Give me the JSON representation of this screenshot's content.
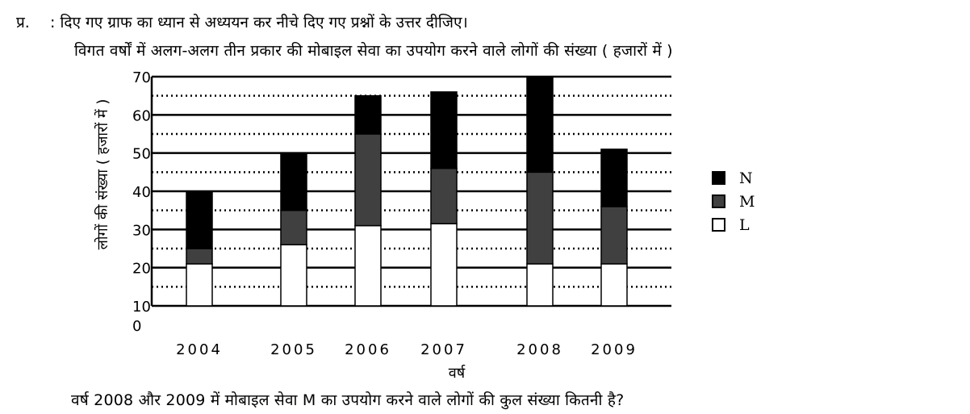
{
  "question": {
    "number": "प्र.",
    "instruction": ": दिए गए ग्राफ का ध्यान से अध्ययन कर नीचे दिए गए प्रश्नों के उत्तर दीजिए।",
    "subtitle": "विगत वर्षों में अलग-अलग तीन प्रकार की मोबाइल सेवा का उपयोग करने वाले लोगों की संख्या ( हजारों में )",
    "prompt": "वर्ष 2008 और 2009 में मोबाइल सेवा M का उपयोग करने वाले लोगों की कुल संख्या कितनी है?"
  },
  "chart_data": {
    "type": "bar",
    "stacked": true,
    "title": "विगत वर्षों में अलग-अलग तीन प्रकार की मोबाइल सेवा का उपयोग करने वाले लोगों की संख्या ( हजारों में )",
    "xlabel": "वर्ष",
    "ylabel": "लोगों की संख्या ( हजारों में )",
    "categories": [
      "2004",
      "2005",
      "2006",
      "2007",
      "2008",
      "2009"
    ],
    "series": [
      {
        "name": "L",
        "color": "#ffffff",
        "values": [
          11,
          16,
          21,
          21.5,
          11,
          11
        ]
      },
      {
        "name": "M",
        "color": "#404040",
        "values": [
          4,
          9,
          24,
          14.5,
          24,
          15
        ]
      },
      {
        "name": "N",
        "color": "#000000",
        "values": [
          15,
          15,
          10,
          20,
          25,
          15
        ]
      }
    ],
    "ylim": [
      0,
      70
    ],
    "yticks": [
      "0",
      "10",
      "20",
      "30",
      "40",
      "50",
      "60",
      "70"
    ],
    "grid": "major solid, minor dotted",
    "legend": "right"
  }
}
